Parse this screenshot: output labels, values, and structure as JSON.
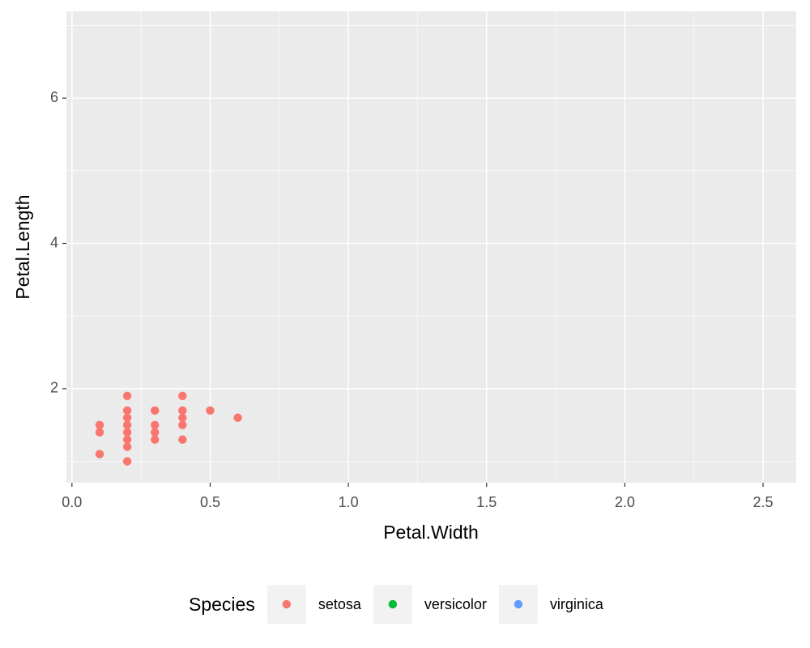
{
  "chart_data": {
    "type": "scatter",
    "x_label": "Petal.Width",
    "y_label": "Petal.Length",
    "legend_title": "Species",
    "legend_position": "bottom",
    "grid": true,
    "xlim": [
      -0.02,
      2.62
    ],
    "ylim": [
      0.705,
      7.195
    ],
    "xticks": [
      {
        "value": 0,
        "label": "0.0"
      },
      0.5,
      {
        "value": 1,
        "label": "1.0"
      },
      1.5,
      {
        "value": 2,
        "label": "2.0"
      },
      2.5
    ],
    "yticks": [
      2,
      4,
      6
    ],
    "series": [
      {
        "name": "setosa",
        "color": "#F8766D",
        "x": [
          0.1,
          0.1,
          0.1,
          0.2,
          0.2,
          0.2,
          0.2,
          0.2,
          0.2,
          0.2,
          0.2,
          0.3,
          0.3,
          0.3,
          0.3,
          0.4,
          0.4,
          0.4,
          0.4,
          0.4,
          0.5,
          0.6
        ],
        "values": [
          1.5,
          1.4,
          1.1,
          1.9,
          1.7,
          1.6,
          1.5,
          1.4,
          1.3,
          1.2,
          1.0,
          1.7,
          1.5,
          1.4,
          1.3,
          1.9,
          1.7,
          1.6,
          1.5,
          1.3,
          1.7,
          1.6
        ]
      },
      {
        "name": "versicolor",
        "color": "#00BA38",
        "x": [],
        "values": []
      },
      {
        "name": "virginica",
        "color": "#619CFF",
        "x": [],
        "values": []
      }
    ]
  }
}
